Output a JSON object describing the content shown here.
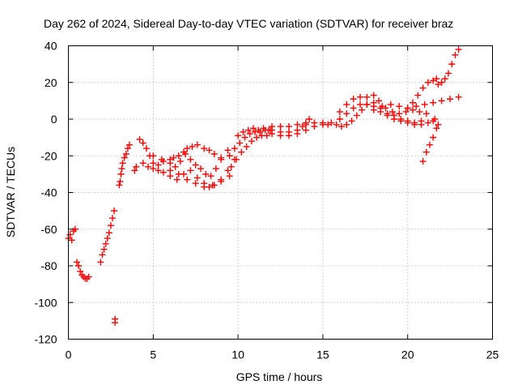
{
  "chart_data": {
    "type": "scatter",
    "title": "Day 262 of 2024, Sidereal Day-to-day VTEC variation (SDTVAR) for receiver braz",
    "xlabel": "GPS time / hours",
    "ylabel": "SDTVAR / TECUs",
    "xlim": [
      0,
      25
    ],
    "ylim": [
      -120,
      40
    ],
    "xticks": [
      0,
      5,
      10,
      15,
      20,
      25
    ],
    "yticks": [
      -120,
      -100,
      -80,
      -60,
      -40,
      -20,
      0,
      20,
      40
    ],
    "grid": true,
    "marker": "+",
    "color": "#ff0000",
    "series": [
      {
        "name": "SDTVAR",
        "points": [
          [
            0.0,
            -65
          ],
          [
            0.1,
            -63
          ],
          [
            0.2,
            -66
          ],
          [
            0.3,
            -61
          ],
          [
            0.4,
            -60
          ],
          [
            0.5,
            -78
          ],
          [
            0.6,
            -80
          ],
          [
            0.7,
            -83
          ],
          [
            0.8,
            -85
          ],
          [
            0.9,
            -86
          ],
          [
            1.0,
            -87
          ],
          [
            1.1,
            -87
          ],
          [
            1.2,
            -86
          ],
          [
            1.9,
            -78
          ],
          [
            2.0,
            -74
          ],
          [
            2.1,
            -71
          ],
          [
            2.2,
            -68
          ],
          [
            2.3,
            -65
          ],
          [
            2.4,
            -62
          ],
          [
            2.5,
            -58
          ],
          [
            2.6,
            -54
          ],
          [
            2.7,
            -50
          ],
          [
            2.75,
            -109
          ],
          [
            2.75,
            -111
          ],
          [
            3.0,
            -36
          ],
          [
            3.05,
            -34
          ],
          [
            3.1,
            -30
          ],
          [
            3.15,
            -27
          ],
          [
            3.2,
            -24
          ],
          [
            3.3,
            -21
          ],
          [
            3.4,
            -19
          ],
          [
            3.5,
            -16
          ],
          [
            3.6,
            -14
          ],
          [
            3.9,
            -28
          ],
          [
            4.0,
            -26
          ],
          [
            4.2,
            -11
          ],
          [
            4.4,
            -13
          ],
          [
            4.6,
            -16
          ],
          [
            4.8,
            -20
          ],
          [
            5.0,
            -24
          ],
          [
            5.3,
            -25
          ],
          [
            5.6,
            -23
          ],
          [
            6.0,
            -22
          ],
          [
            6.2,
            -21
          ],
          [
            6.5,
            -20
          ],
          [
            6.8,
            -18
          ],
          [
            7.0,
            -16
          ],
          [
            7.3,
            -15
          ],
          [
            7.6,
            -14
          ],
          [
            8.0,
            -16
          ],
          [
            8.3,
            -17
          ],
          [
            8.6,
            -19
          ],
          [
            9.0,
            -21
          ],
          [
            4.4,
            -24
          ],
          [
            4.7,
            -26
          ],
          [
            5.0,
            -27
          ],
          [
            5.3,
            -28
          ],
          [
            5.6,
            -29
          ],
          [
            6.0,
            -31
          ],
          [
            6.4,
            -33
          ],
          [
            6.8,
            -30
          ],
          [
            7.2,
            -28
          ],
          [
            7.6,
            -32
          ],
          [
            8.0,
            -35
          ],
          [
            8.3,
            -37
          ],
          [
            8.6,
            -36
          ],
          [
            9.0,
            -33
          ],
          [
            9.4,
            -28
          ],
          [
            9.8,
            -22
          ],
          [
            5.0,
            -20
          ],
          [
            5.5,
            -22
          ],
          [
            6.0,
            -24
          ],
          [
            6.3,
            -26
          ],
          [
            6.6,
            -23
          ],
          [
            6.9,
            -19
          ],
          [
            7.2,
            -22
          ],
          [
            7.5,
            -25
          ],
          [
            7.8,
            -27
          ],
          [
            8.1,
            -30
          ],
          [
            8.4,
            -31
          ],
          [
            8.7,
            -27
          ],
          [
            9.0,
            -22
          ],
          [
            9.4,
            -17
          ],
          [
            6.0,
            -28
          ],
          [
            6.5,
            -30
          ],
          [
            7.0,
            -33
          ],
          [
            7.5,
            -35
          ],
          [
            8.0,
            -37
          ],
          [
            8.5,
            -36
          ],
          [
            9.0,
            -34
          ],
          [
            9.5,
            -31
          ],
          [
            9.5,
            -20
          ],
          [
            9.8,
            -16
          ],
          [
            10.1,
            -13
          ],
          [
            10.4,
            -10
          ],
          [
            10.7,
            -8
          ],
          [
            11.0,
            -7
          ],
          [
            11.3,
            -7
          ],
          [
            11.6,
            -6
          ],
          [
            11.9,
            -6
          ],
          [
            9.6,
            -26
          ],
          [
            9.9,
            -22
          ],
          [
            10.2,
            -18
          ],
          [
            10.5,
            -15
          ],
          [
            10.8,
            -12
          ],
          [
            11.1,
            -10
          ],
          [
            11.4,
            -9
          ],
          [
            11.7,
            -9
          ],
          [
            10.0,
            -9
          ],
          [
            10.3,
            -7
          ],
          [
            10.6,
            -6
          ],
          [
            10.9,
            -5
          ],
          [
            11.2,
            -6
          ],
          [
            11.5,
            -5
          ],
          [
            11.8,
            -6
          ],
          [
            12.0,
            -6
          ],
          [
            12.5,
            -7
          ],
          [
            13.0,
            -7
          ],
          [
            13.5,
            -6
          ],
          [
            13.8,
            -4
          ],
          [
            14.0,
            -2
          ],
          [
            14.2,
            0
          ],
          [
            12.0,
            -8
          ],
          [
            12.5,
            -9
          ],
          [
            13.0,
            -9
          ],
          [
            13.5,
            -8
          ],
          [
            14.0,
            -6
          ],
          [
            14.5,
            -4
          ],
          [
            15.0,
            -3
          ],
          [
            12.0,
            -4
          ],
          [
            12.5,
            -4
          ],
          [
            13.0,
            -4
          ],
          [
            13.5,
            -3
          ],
          [
            14.0,
            -3
          ],
          [
            14.5,
            -2
          ],
          [
            15.0,
            -2
          ],
          [
            15.3,
            -3
          ],
          [
            15.5,
            -2
          ],
          [
            15.8,
            -3
          ],
          [
            16.1,
            -4
          ],
          [
            16.4,
            -3
          ],
          [
            16.7,
            -1
          ],
          [
            17.0,
            2
          ],
          [
            17.3,
            5
          ],
          [
            17.6,
            8
          ],
          [
            18.0,
            9
          ],
          [
            18.4,
            6
          ],
          [
            18.8,
            3
          ],
          [
            19.2,
            2
          ],
          [
            19.6,
            0
          ],
          [
            20.0,
            -1
          ],
          [
            20.4,
            -2
          ],
          [
            20.8,
            -1
          ],
          [
            16.0,
            4
          ],
          [
            16.4,
            8
          ],
          [
            16.8,
            11
          ],
          [
            17.2,
            12
          ],
          [
            17.6,
            12
          ],
          [
            18.0,
            13
          ],
          [
            18.3,
            10
          ],
          [
            18.7,
            6
          ],
          [
            19.1,
            4
          ],
          [
            19.5,
            3
          ],
          [
            19.9,
            4
          ],
          [
            20.3,
            5
          ],
          [
            20.7,
            4
          ],
          [
            21.1,
            3
          ],
          [
            16.0,
            0
          ],
          [
            16.4,
            3
          ],
          [
            16.8,
            6
          ],
          [
            17.2,
            8
          ],
          [
            17.6,
            8
          ],
          [
            18.0,
            7
          ],
          [
            18.4,
            4
          ],
          [
            18.8,
            2
          ],
          [
            19.2,
            0
          ],
          [
            19.6,
            -1
          ],
          [
            20.0,
            -2
          ],
          [
            20.4,
            -3
          ],
          [
            20.8,
            -3
          ],
          [
            21.2,
            -2
          ],
          [
            21.5,
            -1
          ],
          [
            21.6,
            0
          ],
          [
            18.0,
            5
          ],
          [
            18.5,
            7
          ],
          [
            19.0,
            8
          ],
          [
            19.5,
            7
          ],
          [
            20.0,
            6
          ],
          [
            20.5,
            7
          ],
          [
            21.0,
            8
          ],
          [
            21.5,
            9
          ],
          [
            22.0,
            10
          ],
          [
            22.5,
            11
          ],
          [
            23.0,
            12
          ],
          [
            20.0,
            6
          ],
          [
            20.3,
            9
          ],
          [
            20.6,
            13
          ],
          [
            20.9,
            17
          ],
          [
            21.2,
            20
          ],
          [
            21.5,
            21
          ],
          [
            21.7,
            22
          ],
          [
            21.8,
            19
          ],
          [
            22.0,
            20
          ],
          [
            22.2,
            22
          ],
          [
            22.4,
            25
          ],
          [
            22.6,
            30
          ],
          [
            22.8,
            35
          ],
          [
            23.0,
            38
          ],
          [
            20.9,
            -23
          ],
          [
            21.1,
            -18
          ],
          [
            21.3,
            -14
          ],
          [
            21.5,
            -10
          ],
          [
            21.7,
            -5
          ],
          [
            21.8,
            -3
          ]
        ]
      }
    ]
  }
}
